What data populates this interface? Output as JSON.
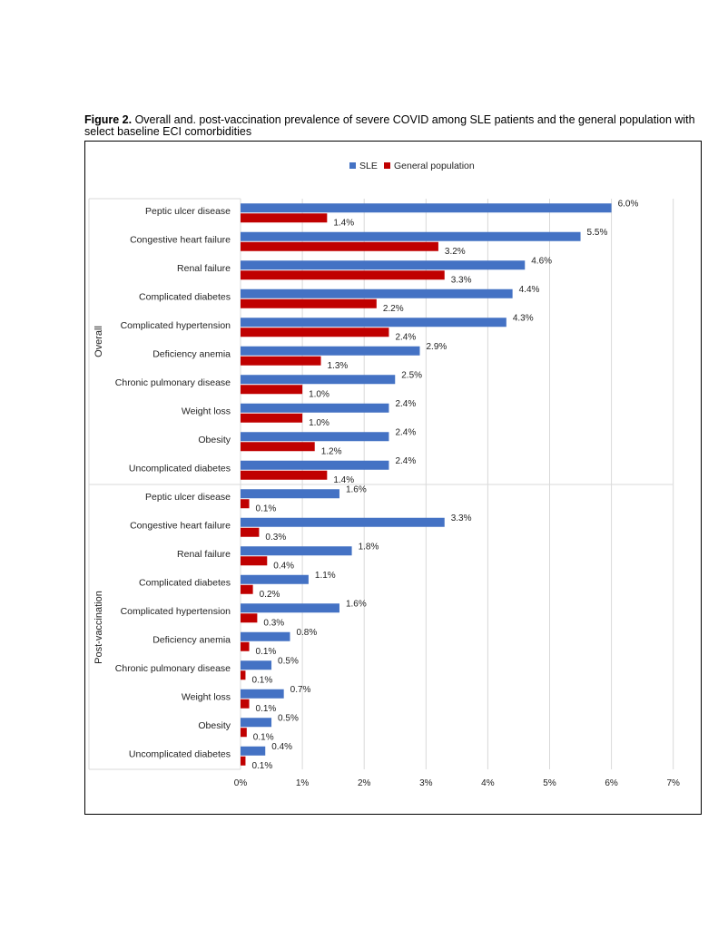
{
  "caption": {
    "label": "Figure 2.",
    "text": " Overall and. post-vaccination prevalence of severe COVID among SLE patients and the general population with select baseline ECI comorbidities"
  },
  "colors": {
    "sle": "#4472C4",
    "general": "#C00000",
    "grid": "#D9D9D9"
  },
  "chart_data": {
    "type": "bar",
    "orientation": "horizontal",
    "title": "",
    "xlabel": "",
    "ylabel": "",
    "xlim": [
      0,
      7
    ],
    "x_ticks": [
      "0%",
      "1%",
      "2%",
      "3%",
      "4%",
      "5%",
      "6%",
      "7%"
    ],
    "grid": true,
    "legend": {
      "position": "top-center",
      "entries": [
        "SLE",
        "General population"
      ]
    },
    "groups": [
      {
        "name": "Overall",
        "categories": [
          "Peptic ulcer disease",
          "Congestive heart failure",
          "Renal failure",
          "Complicated diabetes",
          "Complicated hypertension",
          "Deficiency anemia",
          "Chronic pulmonary disease",
          "Weight loss",
          "Obesity",
          "Uncomplicated diabetes"
        ],
        "series": [
          {
            "name": "SLE",
            "values": [
              6.0,
              5.5,
              4.6,
              4.4,
              4.3,
              2.9,
              2.5,
              2.4,
              2.4,
              2.4
            ],
            "labels": [
              "6.0%",
              "5.5%",
              "4.6%",
              "4.4%",
              "4.3%",
              "2.9%",
              "2.5%",
              "2.4%",
              "2.4%",
              "2.4%"
            ]
          },
          {
            "name": "General population",
            "values": [
              1.4,
              3.2,
              3.3,
              2.2,
              2.4,
              1.3,
              1.0,
              1.0,
              1.2,
              1.4
            ],
            "labels": [
              "1.4%",
              "3.2%",
              "3.3%",
              "2.2%",
              "2.4%",
              "1.3%",
              "1.0%",
              "1.0%",
              "1.2%",
              "1.4%"
            ]
          }
        ]
      },
      {
        "name": "Post-vaccination",
        "categories": [
          "Peptic ulcer disease",
          "Congestive heart failure",
          "Renal failure",
          "Complicated diabetes",
          "Complicated hypertension",
          "Deficiency anemia",
          "Chronic pulmonary disease",
          "Weight loss",
          "Obesity",
          "Uncomplicated diabetes"
        ],
        "series": [
          {
            "name": "SLE",
            "values": [
              1.6,
              3.3,
              1.8,
              1.1,
              1.6,
              0.8,
              0.5,
              0.7,
              0.5,
              0.4
            ],
            "labels": [
              "1.6%",
              "3.3%",
              "1.8%",
              "1.1%",
              "1.6%",
              "0.8%",
              "0.5%",
              "0.7%",
              "0.5%",
              "0.4%"
            ]
          },
          {
            "name": "General population",
            "values": [
              0.14,
              0.3,
              0.43,
              0.2,
              0.27,
              0.14,
              0.08,
              0.14,
              0.1,
              0.08
            ],
            "labels": [
              "0.1%",
              "0.3%",
              "0.4%",
              "0.2%",
              "0.3%",
              "0.1%",
              "0.1%",
              "0.1%",
              "0.1%",
              "0.1%"
            ]
          }
        ]
      }
    ]
  }
}
